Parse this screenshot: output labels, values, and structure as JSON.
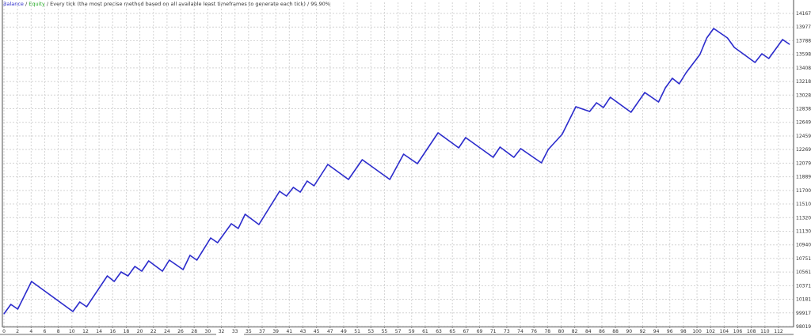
{
  "header": {
    "balance_label": "Balance",
    "sep1": " / ",
    "equity_label": "Equity",
    "rest": " / Every tick (the most precise method based on all available least timeframes to generate each tick) / 99.90%"
  },
  "colors": {
    "balance": "#2b2bcc",
    "equity": "#22aa22",
    "grid": "#d4d4d4",
    "axis": "#888888"
  },
  "chart_data": {
    "type": "line",
    "grid": true,
    "ylim": [
      98019,
      141676
    ],
    "xlim": [
      0,
      114
    ],
    "y_ticks": [
      98019,
      99917,
      101816,
      103714,
      105612,
      107510,
      109408,
      111306,
      113204,
      115102,
      117000,
      118899,
      120797,
      122695,
      124593,
      126491,
      128389,
      130287,
      132185,
      134083,
      135981,
      137880,
      139778,
      141676
    ],
    "x_ticks": [
      "0",
      "2",
      "4",
      "6",
      "8",
      "10",
      "12",
      "14",
      "16",
      "18",
      "20",
      "22",
      "24",
      "26",
      "28",
      "30",
      "32",
      "33",
      "35",
      "37",
      "39",
      "41",
      "43",
      "45",
      "47",
      "49",
      "51",
      "53",
      "55",
      "57",
      "59",
      "61",
      "63",
      "65",
      "67",
      "69",
      "71",
      "73",
      "74",
      "76",
      "78",
      "80",
      "82",
      "84",
      "86",
      "88",
      "90",
      "92",
      "94",
      "96",
      "98",
      "100",
      "102",
      "104",
      "106",
      "108",
      "110",
      "112"
    ],
    "series": [
      {
        "name": "Balance",
        "x": [
          0,
          1,
          2,
          4,
          10,
          11,
          12,
          15,
          16,
          17,
          18,
          19,
          20,
          21,
          23,
          24,
          26,
          27,
          28,
          30,
          31,
          33,
          34,
          35,
          37,
          40,
          41,
          42,
          43,
          44,
          45,
          47,
          50,
          52,
          56,
          58,
          60,
          63,
          66,
          67,
          71,
          72,
          74,
          75,
          78,
          79,
          81,
          83,
          85,
          86,
          87,
          88,
          91,
          93,
          95,
          96,
          97,
          98,
          99,
          101,
          102,
          103,
          105,
          106,
          109,
          110,
          111,
          113,
          114
        ],
        "y": [
          99783,
          101106,
          100444,
          104303,
          100114,
          101436,
          100775,
          105074,
          104303,
          105626,
          105074,
          106397,
          105736,
          107169,
          105736,
          107279,
          105956,
          107941,
          107279,
          110366,
          109704,
          112350,
          111689,
          113673,
          112240,
          116870,
          116209,
          117421,
          116760,
          118303,
          117642,
          120618,
          118524,
          121280,
          118524,
          122051,
          120728,
          125028,
          122933,
          124366,
          121610,
          123043,
          121610,
          122823,
          120839,
          122713,
          124807,
          128666,
          128004,
          129217,
          128555,
          129988,
          127894,
          130650,
          129327,
          131311,
          132634,
          131863,
          133406,
          135942,
          138257,
          139581,
          138257,
          136934,
          134839,
          136052,
          135390,
          138036,
          137374
        ]
      }
    ]
  }
}
